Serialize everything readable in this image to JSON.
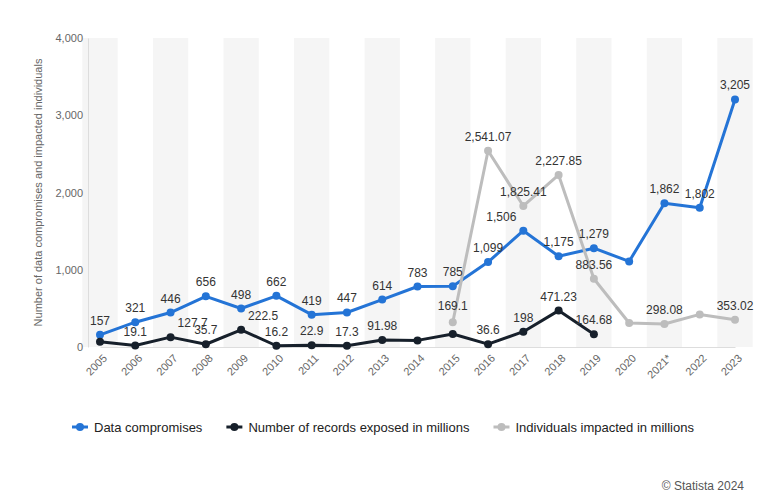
{
  "chart_data": {
    "type": "line",
    "y_label": "Number of data compromises and impacted individuals",
    "source": "© Statista 2024",
    "categories": [
      "2005",
      "2006",
      "2007",
      "2008",
      "2009",
      "2010",
      "2011",
      "2012",
      "2013",
      "2014",
      "2015",
      "2016",
      "2017",
      "2018",
      "2019",
      "2020",
      "2021*",
      "2022",
      "2023"
    ],
    "series": [
      {
        "name": "Data compromises",
        "color": "#2474d6",
        "marker": "circle",
        "values": [
          157,
          321,
          446,
          656,
          498,
          662,
          419,
          447,
          614,
          783,
          785,
          1099,
          1506,
          1175,
          1279,
          1108,
          1862,
          1802,
          3205
        ],
        "value_labels": [
          "157",
          "321",
          "446",
          "656",
          "498",
          "662",
          "419",
          "447",
          "614",
          "783",
          "785",
          "1,099",
          "1,506",
          "1,175",
          "1,279",
          null,
          "1,862",
          "1,802",
          "3,205"
        ]
      },
      {
        "name": "Number of records exposed in millions",
        "color": "#17202b",
        "marker": "circle",
        "values": [
          66.9,
          19.1,
          127.7,
          35.7,
          222.5,
          16.2,
          22.9,
          17.3,
          91.98,
          85.61,
          169.1,
          36.6,
          198,
          471.23,
          164.68,
          null,
          null,
          null,
          null
        ],
        "value_labels": [
          null,
          "19.1",
          "127.7",
          "35.7",
          "222.5",
          "16.2",
          "22.9",
          "17.3",
          "91.98",
          null,
          "169.1",
          "36.6",
          "198",
          "471.23",
          "164.68",
          null,
          null,
          null,
          null
        ]
      },
      {
        "name": "Individuals impacted in millions",
        "color": "#bdbdbd",
        "marker": "circle",
        "values": [
          null,
          null,
          null,
          null,
          null,
          null,
          null,
          null,
          null,
          null,
          320,
          2541.07,
          1825.41,
          2227.85,
          883.56,
          310,
          298.08,
          422,
          353.02
        ],
        "value_labels": [
          null,
          null,
          null,
          null,
          null,
          null,
          null,
          null,
          null,
          null,
          null,
          "2,541.07",
          "1,825.41",
          "2,227.85",
          "883.56",
          null,
          "298.08",
          null,
          "353.02"
        ]
      }
    ],
    "ylim": [
      0,
      4000
    ],
    "yticks": [
      0,
      {
        "value": 1000,
        "label": "1,000"
      },
      {
        "value": 2000,
        "label": "2,000"
      },
      {
        "value": 3000,
        "label": "3,000"
      },
      {
        "value": 4000,
        "label": "4,000"
      }
    ],
    "data_labels": true,
    "legend": "bottom"
  }
}
